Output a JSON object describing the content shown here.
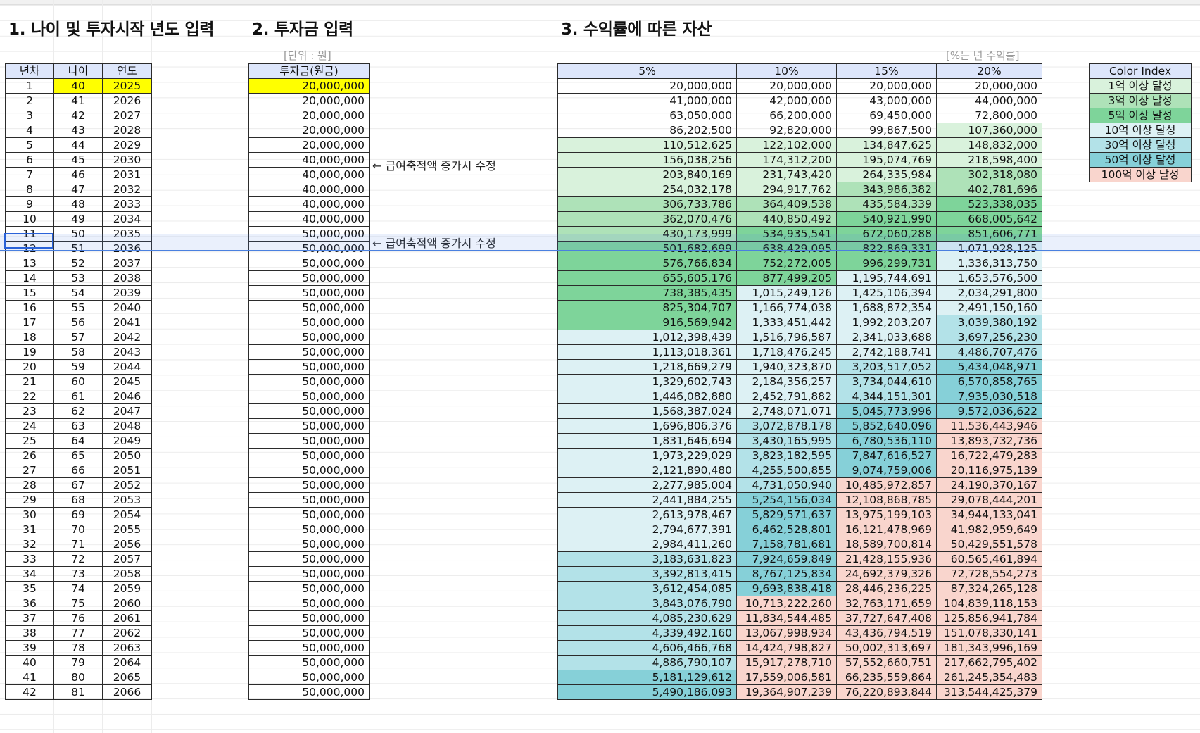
{
  "titles": {
    "section1": "1. 나이 및 투자시작 년도 입력",
    "section2": "2. 투자금 입력",
    "section3": "3. 수익률에 따른 자산"
  },
  "notes": {
    "unit": "[단위 : 원]",
    "rate": "[%는 년 수익률]"
  },
  "memo": "← 급여축적액 증가시 수정",
  "table1": {
    "headers": [
      "년차",
      "나이",
      "연도"
    ]
  },
  "table2": {
    "header": "투자금(원금)"
  },
  "table3": {
    "headers": [
      "5%",
      "10%",
      "15%",
      "20%"
    ]
  },
  "color_index": {
    "title": "Color Index",
    "items": [
      {
        "label": "1억 이상 달성",
        "color": "#d9f2dc"
      },
      {
        "label": "3억 이상 달성",
        "color": "#aee2b8"
      },
      {
        "label": "5억 이상 달성",
        "color": "#7ed49a"
      },
      {
        "label": "10억 이상 달성",
        "color": "#ddf1f4"
      },
      {
        "label": "30억 이상 달성",
        "color": "#b3e2e8"
      },
      {
        "label": "50억 이상 달성",
        "color": "#86d0d8"
      },
      {
        "label": "100억 이상 달성",
        "color": "#f9d5cd"
      }
    ]
  },
  "selected_row": 11,
  "rows": [
    {
      "y": "1",
      "age": "40",
      "year": "2025",
      "inv": "20,000,000",
      "v": [
        "20,000,000",
        "20,000,000",
        "20,000,000",
        "20,000,000"
      ],
      "lv": [
        -1,
        -1,
        -1,
        -1
      ]
    },
    {
      "y": "2",
      "age": "41",
      "year": "2026",
      "inv": "20,000,000",
      "v": [
        "41,000,000",
        "42,000,000",
        "43,000,000",
        "44,000,000"
      ],
      "lv": [
        -1,
        -1,
        -1,
        -1
      ]
    },
    {
      "y": "3",
      "age": "42",
      "year": "2027",
      "inv": "20,000,000",
      "v": [
        "63,050,000",
        "66,200,000",
        "69,450,000",
        "72,800,000"
      ],
      "lv": [
        -1,
        -1,
        -1,
        -1
      ]
    },
    {
      "y": "4",
      "age": "43",
      "year": "2028",
      "inv": "20,000,000",
      "v": [
        "86,202,500",
        "92,820,000",
        "99,867,500",
        "107,360,000"
      ],
      "lv": [
        -1,
        -1,
        -1,
        0
      ]
    },
    {
      "y": "5",
      "age": "44",
      "year": "2029",
      "inv": "20,000,000",
      "v": [
        "110,512,625",
        "122,102,000",
        "134,847,625",
        "148,832,000"
      ],
      "lv": [
        0,
        0,
        0,
        0
      ]
    },
    {
      "y": "6",
      "age": "45",
      "year": "2030",
      "inv": "40,000,000",
      "memo": true,
      "v": [
        "156,038,256",
        "174,312,200",
        "195,074,769",
        "218,598,400"
      ],
      "lv": [
        0,
        0,
        0,
        0
      ]
    },
    {
      "y": "7",
      "age": "46",
      "year": "2031",
      "inv": "40,000,000",
      "v": [
        "203,840,169",
        "231,743,420",
        "264,335,984",
        "302,318,080"
      ],
      "lv": [
        0,
        0,
        0,
        1
      ]
    },
    {
      "y": "8",
      "age": "47",
      "year": "2032",
      "inv": "40,000,000",
      "v": [
        "254,032,178",
        "294,917,762",
        "343,986,382",
        "402,781,696"
      ],
      "lv": [
        0,
        0,
        1,
        1
      ]
    },
    {
      "y": "9",
      "age": "48",
      "year": "2033",
      "inv": "40,000,000",
      "v": [
        "306,733,786",
        "364,409,538",
        "435,584,339",
        "523,338,035"
      ],
      "lv": [
        1,
        1,
        1,
        2
      ]
    },
    {
      "y": "10",
      "age": "49",
      "year": "2034",
      "inv": "40,000,000",
      "v": [
        "362,070,476",
        "440,850,492",
        "540,921,990",
        "668,005,642"
      ],
      "lv": [
        1,
        1,
        2,
        2
      ]
    },
    {
      "y": "11",
      "age": "50",
      "year": "2035",
      "inv": "50,000,000",
      "memo": true,
      "v": [
        "430,173,999",
        "534,935,541",
        "672,060,288",
        "851,606,771"
      ],
      "lv": [
        1,
        2,
        2,
        2
      ]
    },
    {
      "y": "12",
      "age": "51",
      "year": "2036",
      "inv": "50,000,000",
      "v": [
        "501,682,699",
        "638,429,095",
        "822,869,331",
        "1,071,928,125"
      ],
      "lv": [
        2,
        2,
        2,
        3
      ]
    },
    {
      "y": "13",
      "age": "52",
      "year": "2037",
      "inv": "50,000,000",
      "v": [
        "576,766,834",
        "752,272,005",
        "996,299,731",
        "1,336,313,750"
      ],
      "lv": [
        2,
        2,
        2,
        3
      ]
    },
    {
      "y": "14",
      "age": "53",
      "year": "2038",
      "inv": "50,000,000",
      "v": [
        "655,605,176",
        "877,499,205",
        "1,195,744,691",
        "1,653,576,500"
      ],
      "lv": [
        2,
        2,
        3,
        3
      ]
    },
    {
      "y": "15",
      "age": "54",
      "year": "2039",
      "inv": "50,000,000",
      "v": [
        "738,385,435",
        "1,015,249,126",
        "1,425,106,394",
        "2,034,291,800"
      ],
      "lv": [
        2,
        3,
        3,
        3
      ]
    },
    {
      "y": "16",
      "age": "55",
      "year": "2040",
      "inv": "50,000,000",
      "v": [
        "825,304,707",
        "1,166,774,038",
        "1,688,872,354",
        "2,491,150,160"
      ],
      "lv": [
        2,
        3,
        3,
        3
      ]
    },
    {
      "y": "17",
      "age": "56",
      "year": "2041",
      "inv": "50,000,000",
      "v": [
        "916,569,942",
        "1,333,451,442",
        "1,992,203,207",
        "3,039,380,192"
      ],
      "lv": [
        2,
        3,
        3,
        4
      ]
    },
    {
      "y": "18",
      "age": "57",
      "year": "2042",
      "inv": "50,000,000",
      "v": [
        "1,012,398,439",
        "1,516,796,587",
        "2,341,033,688",
        "3,697,256,230"
      ],
      "lv": [
        3,
        3,
        3,
        4
      ]
    },
    {
      "y": "19",
      "age": "58",
      "year": "2043",
      "inv": "50,000,000",
      "v": [
        "1,113,018,361",
        "1,718,476,245",
        "2,742,188,741",
        "4,486,707,476"
      ],
      "lv": [
        3,
        3,
        3,
        4
      ]
    },
    {
      "y": "20",
      "age": "59",
      "year": "2044",
      "inv": "50,000,000",
      "v": [
        "1,218,669,279",
        "1,940,323,870",
        "3,203,517,052",
        "5,434,048,971"
      ],
      "lv": [
        3,
        3,
        4,
        5
      ]
    },
    {
      "y": "21",
      "age": "60",
      "year": "2045",
      "inv": "50,000,000",
      "v": [
        "1,329,602,743",
        "2,184,356,257",
        "3,734,044,610",
        "6,570,858,765"
      ],
      "lv": [
        3,
        3,
        4,
        5
      ]
    },
    {
      "y": "22",
      "age": "61",
      "year": "2046",
      "inv": "50,000,000",
      "v": [
        "1,446,082,880",
        "2,452,791,882",
        "4,344,151,301",
        "7,935,030,518"
      ],
      "lv": [
        3,
        3,
        4,
        5
      ]
    },
    {
      "y": "23",
      "age": "62",
      "year": "2047",
      "inv": "50,000,000",
      "v": [
        "1,568,387,024",
        "2,748,071,071",
        "5,045,773,996",
        "9,572,036,622"
      ],
      "lv": [
        3,
        3,
        5,
        5
      ]
    },
    {
      "y": "24",
      "age": "63",
      "year": "2048",
      "inv": "50,000,000",
      "v": [
        "1,696,806,376",
        "3,072,878,178",
        "5,852,640,096",
        "11,536,443,946"
      ],
      "lv": [
        3,
        4,
        5,
        6
      ]
    },
    {
      "y": "25",
      "age": "64",
      "year": "2049",
      "inv": "50,000,000",
      "v": [
        "1,831,646,694",
        "3,430,165,995",
        "6,780,536,110",
        "13,893,732,736"
      ],
      "lv": [
        3,
        4,
        5,
        6
      ]
    },
    {
      "y": "26",
      "age": "65",
      "year": "2050",
      "inv": "50,000,000",
      "v": [
        "1,973,229,029",
        "3,823,182,595",
        "7,847,616,527",
        "16,722,479,283"
      ],
      "lv": [
        3,
        4,
        5,
        6
      ]
    },
    {
      "y": "27",
      "age": "66",
      "year": "2051",
      "inv": "50,000,000",
      "v": [
        "2,121,890,480",
        "4,255,500,855",
        "9,074,759,006",
        "20,116,975,139"
      ],
      "lv": [
        3,
        4,
        5,
        6
      ]
    },
    {
      "y": "28",
      "age": "67",
      "year": "2052",
      "inv": "50,000,000",
      "v": [
        "2,277,985,004",
        "4,731,050,940",
        "10,485,972,857",
        "24,190,370,167"
      ],
      "lv": [
        3,
        4,
        6,
        6
      ]
    },
    {
      "y": "29",
      "age": "68",
      "year": "2053",
      "inv": "50,000,000",
      "v": [
        "2,441,884,255",
        "5,254,156,034",
        "12,108,868,785",
        "29,078,444,201"
      ],
      "lv": [
        3,
        5,
        6,
        6
      ]
    },
    {
      "y": "30",
      "age": "69",
      "year": "2054",
      "inv": "50,000,000",
      "v": [
        "2,613,978,467",
        "5,829,571,637",
        "13,975,199,103",
        "34,944,133,041"
      ],
      "lv": [
        3,
        5,
        6,
        6
      ]
    },
    {
      "y": "31",
      "age": "70",
      "year": "2055",
      "inv": "50,000,000",
      "v": [
        "2,794,677,391",
        "6,462,528,801",
        "16,121,478,969",
        "41,982,959,649"
      ],
      "lv": [
        3,
        5,
        6,
        6
      ]
    },
    {
      "y": "32",
      "age": "71",
      "year": "2056",
      "inv": "50,000,000",
      "v": [
        "2,984,411,260",
        "7,158,781,681",
        "18,589,700,814",
        "50,429,551,578"
      ],
      "lv": [
        3,
        5,
        6,
        6
      ]
    },
    {
      "y": "33",
      "age": "72",
      "year": "2057",
      "inv": "50,000,000",
      "v": [
        "3,183,631,823",
        "7,924,659,849",
        "21,428,155,936",
        "60,565,461,894"
      ],
      "lv": [
        4,
        5,
        6,
        6
      ]
    },
    {
      "y": "34",
      "age": "73",
      "year": "2058",
      "inv": "50,000,000",
      "v": [
        "3,392,813,415",
        "8,767,125,834",
        "24,692,379,326",
        "72,728,554,273"
      ],
      "lv": [
        4,
        5,
        6,
        6
      ]
    },
    {
      "y": "35",
      "age": "74",
      "year": "2059",
      "inv": "50,000,000",
      "v": [
        "3,612,454,085",
        "9,693,838,418",
        "28,446,236,225",
        "87,324,265,128"
      ],
      "lv": [
        4,
        5,
        6,
        6
      ]
    },
    {
      "y": "36",
      "age": "75",
      "year": "2060",
      "inv": "50,000,000",
      "v": [
        "3,843,076,790",
        "10,713,222,260",
        "32,763,171,659",
        "104,839,118,153"
      ],
      "lv": [
        4,
        6,
        6,
        6
      ]
    },
    {
      "y": "37",
      "age": "76",
      "year": "2061",
      "inv": "50,000,000",
      "v": [
        "4,085,230,629",
        "11,834,544,485",
        "37,727,647,408",
        "125,856,941,784"
      ],
      "lv": [
        4,
        6,
        6,
        6
      ]
    },
    {
      "y": "38",
      "age": "77",
      "year": "2062",
      "inv": "50,000,000",
      "v": [
        "4,339,492,160",
        "13,067,998,934",
        "43,436,794,519",
        "151,078,330,141"
      ],
      "lv": [
        4,
        6,
        6,
        6
      ]
    },
    {
      "y": "39",
      "age": "78",
      "year": "2063",
      "inv": "50,000,000",
      "v": [
        "4,606,466,768",
        "14,424,798,827",
        "50,002,313,697",
        "181,343,996,169"
      ],
      "lv": [
        4,
        6,
        6,
        6
      ]
    },
    {
      "y": "40",
      "age": "79",
      "year": "2064",
      "inv": "50,000,000",
      "v": [
        "4,886,790,107",
        "15,917,278,710",
        "57,552,660,751",
        "217,662,795,402"
      ],
      "lv": [
        4,
        6,
        6,
        6
      ]
    },
    {
      "y": "41",
      "age": "80",
      "year": "2065",
      "inv": "50,000,000",
      "v": [
        "5,181,129,612",
        "17,559,006,581",
        "66,235,559,864",
        "261,245,354,483"
      ],
      "lv": [
        5,
        6,
        6,
        6
      ]
    },
    {
      "y": "42",
      "age": "81",
      "year": "2066",
      "inv": "50,000,000",
      "v": [
        "5,490,186,093",
        "19,364,907,239",
        "76,220,893,844",
        "313,544,425,379"
      ],
      "lv": [
        5,
        6,
        6,
        6
      ]
    }
  ]
}
